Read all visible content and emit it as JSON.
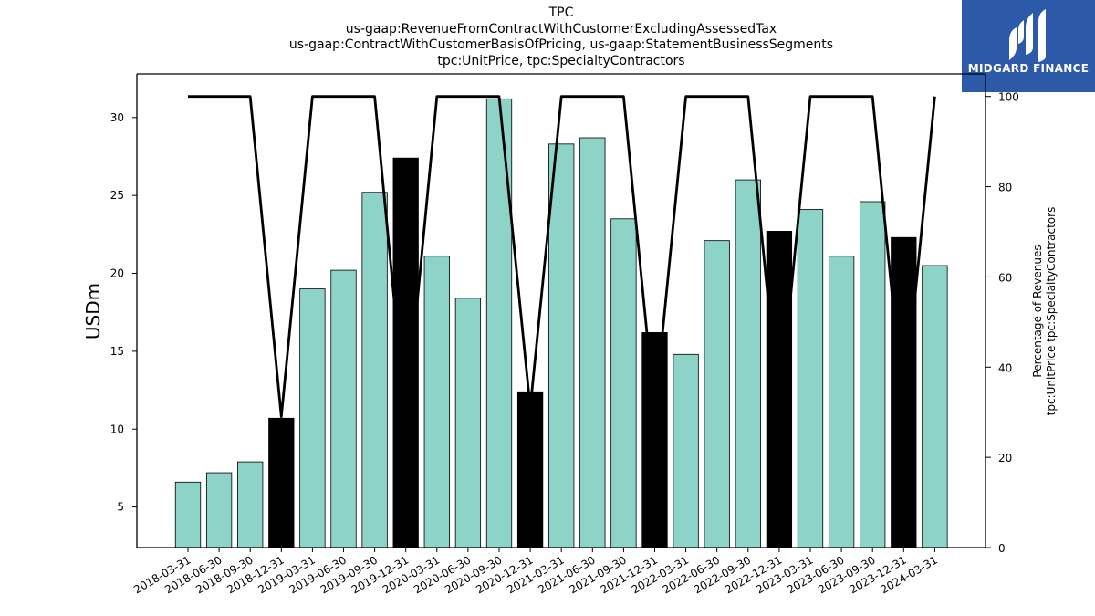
{
  "title_lines": [
    "TPC",
    "us-gaap:RevenueFromContractWithCustomerExcludingAssessedTax",
    "us-gaap:ContractWithCustomerBasisOfPricing, us-gaap:StatementBusinessSegments",
    "tpc:UnitPrice, tpc:SpecialtyContractors"
  ],
  "logo": {
    "text": "MIDGARD FINANCE",
    "icon": "midgard-logo-icon",
    "background": "#2c5aa8"
  },
  "chart_data": {
    "type": "bar",
    "categories": [
      "2018-03-31",
      "2018-06-30",
      "2018-09-30",
      "2018-12-31",
      "2019-03-31",
      "2019-06-30",
      "2019-09-30",
      "2019-12-31",
      "2020-03-31",
      "2020-06-30",
      "2020-09-30",
      "2020-12-31",
      "2021-03-31",
      "2021-06-30",
      "2021-09-30",
      "2021-12-31",
      "2022-03-31",
      "2022-06-30",
      "2022-09-30",
      "2022-12-31",
      "2023-03-31",
      "2023-06-30",
      "2023-09-30",
      "2023-12-31",
      "2024-03-31"
    ],
    "series": [
      {
        "axis": "left",
        "type": "bar",
        "values": [
          6.6,
          7.2,
          7.9,
          10.7,
          19.0,
          20.2,
          25.2,
          27.4,
          21.1,
          18.4,
          31.2,
          12.4,
          28.3,
          28.7,
          23.5,
          16.2,
          14.8,
          22.1,
          26.0,
          22.7,
          24.1,
          21.1,
          24.6,
          22.3,
          20.5
        ],
        "bar_colors": [
          "#8dd3c7",
          "#8dd3c7",
          "#8dd3c7",
          "#000000",
          "#8dd3c7",
          "#8dd3c7",
          "#8dd3c7",
          "#000000",
          "#8dd3c7",
          "#8dd3c7",
          "#8dd3c7",
          "#000000",
          "#8dd3c7",
          "#8dd3c7",
          "#8dd3c7",
          "#000000",
          "#8dd3c7",
          "#8dd3c7",
          "#8dd3c7",
          "#000000",
          "#8dd3c7",
          "#8dd3c7",
          "#8dd3c7",
          "#000000",
          "#8dd3c7"
        ]
      },
      {
        "axis": "right",
        "type": "line",
        "color": "#000000",
        "values": [
          100,
          100,
          100,
          29,
          100,
          100,
          100,
          28,
          100,
          100,
          100,
          31,
          100,
          100,
          100,
          30,
          100,
          100,
          100,
          30,
          100,
          100,
          100,
          30,
          100
        ]
      }
    ],
    "ylabel": "USDm",
    "ylim": [
      2.4,
      32.8
    ],
    "yticks": [
      5,
      10,
      15,
      20,
      25,
      30
    ],
    "y2label_lines": [
      "Percentage of Revenues",
      "tpc:UnitPrice tpc:SpecialtyContractors"
    ],
    "y2lim": [
      0,
      105
    ],
    "y2ticks": [
      0,
      20,
      40,
      60,
      80,
      100
    ],
    "grid": false,
    "legend": "none"
  }
}
